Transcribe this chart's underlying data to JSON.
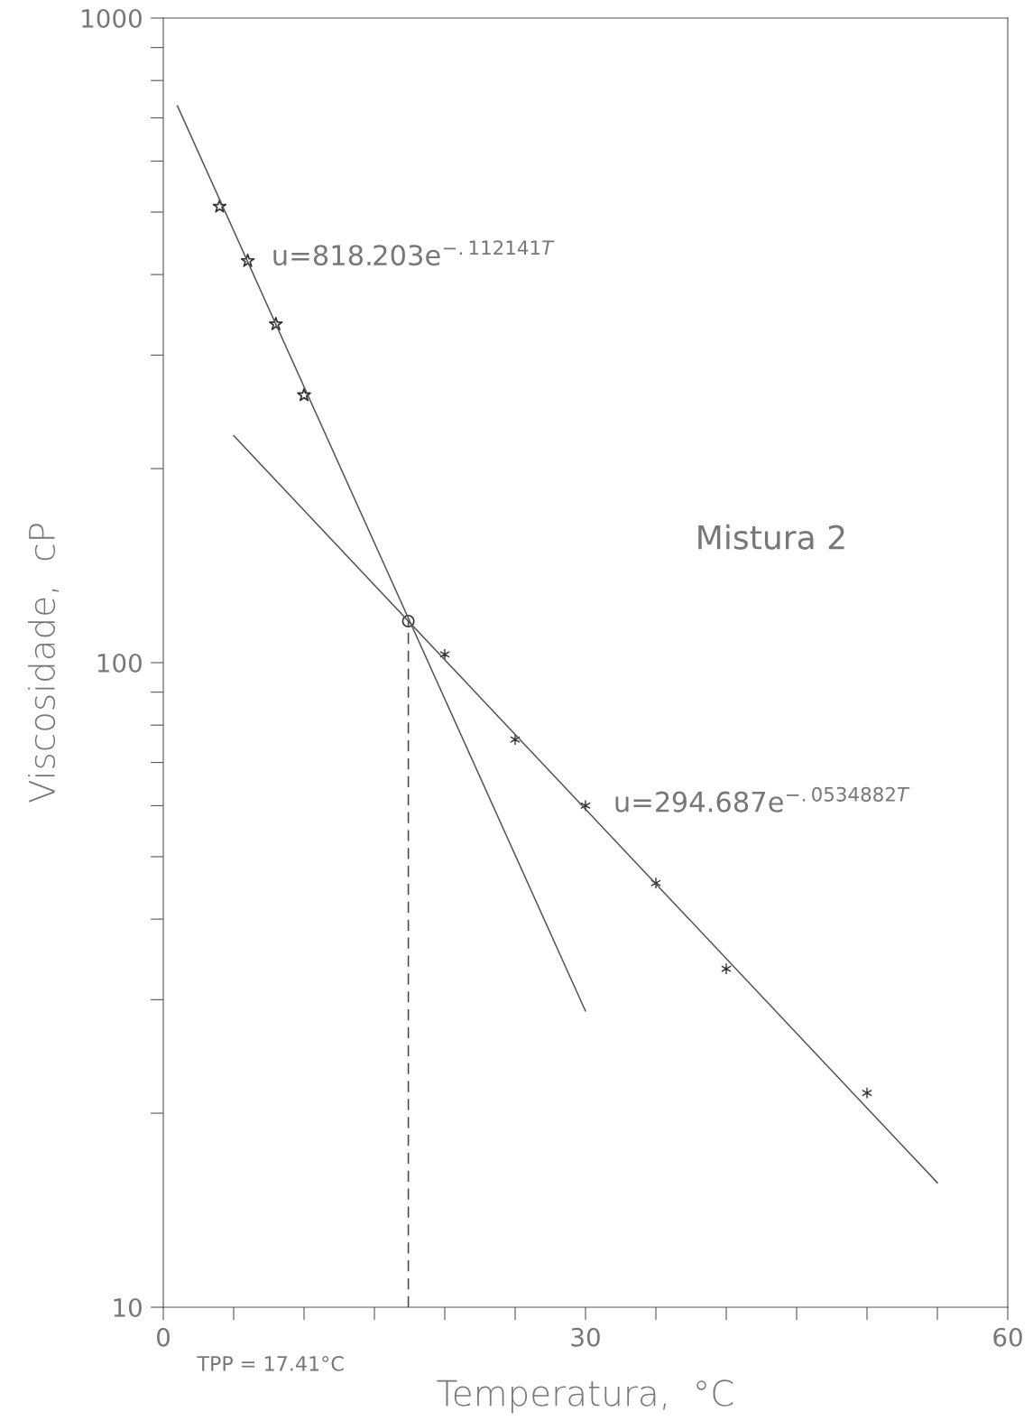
{
  "chart_data": {
    "type": "scatter",
    "xlabel": "Temperatura,  °C",
    "ylabel": "Viscosidade,  cP",
    "log": "y",
    "xlim": [
      0,
      60
    ],
    "ylim": [
      10,
      1000
    ],
    "xticks": [
      0,
      {
        "value": 5,
        "label": null
      },
      {
        "value": 10,
        "label": null
      },
      {
        "value": 15,
        "label": null
      },
      {
        "value": 20,
        "label": null
      },
      {
        "value": 25,
        "label": null
      },
      30,
      {
        "value": 35,
        "label": null
      },
      {
        "value": 40,
        "label": null
      },
      {
        "value": 45,
        "label": null
      },
      {
        "value": 50,
        "label": null
      },
      {
        "value": 55,
        "label": null
      },
      60
    ],
    "yticks": [
      10,
      {
        "value": 20,
        "label": null
      },
      {
        "value": 30,
        "label": null
      },
      {
        "value": 40,
        "label": null
      },
      {
        "value": 50,
        "label": null
      },
      {
        "value": 60,
        "label": null
      },
      {
        "value": 70,
        "label": null
      },
      {
        "value": 80,
        "label": null
      },
      {
        "value": 90,
        "label": null
      },
      100,
      {
        "value": 200,
        "label": null
      },
      {
        "value": 300,
        "label": null
      },
      {
        "value": 400,
        "label": null
      },
      {
        "value": 500,
        "label": null
      },
      {
        "value": 600,
        "label": null
      },
      {
        "value": 700,
        "label": null
      },
      {
        "value": 800,
        "label": null
      },
      {
        "value": 900,
        "label": null
      },
      1000
    ],
    "grid": false,
    "legend": false,
    "series": [
      {
        "marker": "star",
        "color": "#333333",
        "x": [
          4,
          6,
          8,
          10
        ],
        "values": [
          510,
          420,
          335,
          260
        ]
      },
      {
        "marker": "cross",
        "color": "#333333",
        "x": [
          20,
          25,
          30,
          35,
          40,
          50
        ],
        "values": [
          103,
          76,
          60,
          45.5,
          33.5,
          21.5
        ]
      },
      {
        "type": "line",
        "marker": "none",
        "line_style": "solid",
        "color": "#555555",
        "x": [
          1,
          30
        ],
        "values": [
          731,
          28.8
        ]
      },
      {
        "type": "line",
        "marker": "none",
        "line_style": "solid",
        "color": "#555555",
        "x": [
          5,
          55
        ],
        "values": [
          225,
          15.6
        ]
      },
      {
        "type": "line",
        "marker": "none",
        "line_style": "dashed",
        "color": "#444444",
        "x": [
          17.41,
          17.41
        ],
        "values": [
          10,
          116
        ]
      },
      {
        "marker": "circle",
        "color": "#333333",
        "x": [
          17.41
        ],
        "values": [
          116
        ]
      }
    ],
    "annotations": [
      "u=818.203e$^{−.112141T}$",
      "u=294.687e$^{−.0534882T}$",
      "TPP = 17.41°C",
      "Mistura 2"
    ]
  }
}
